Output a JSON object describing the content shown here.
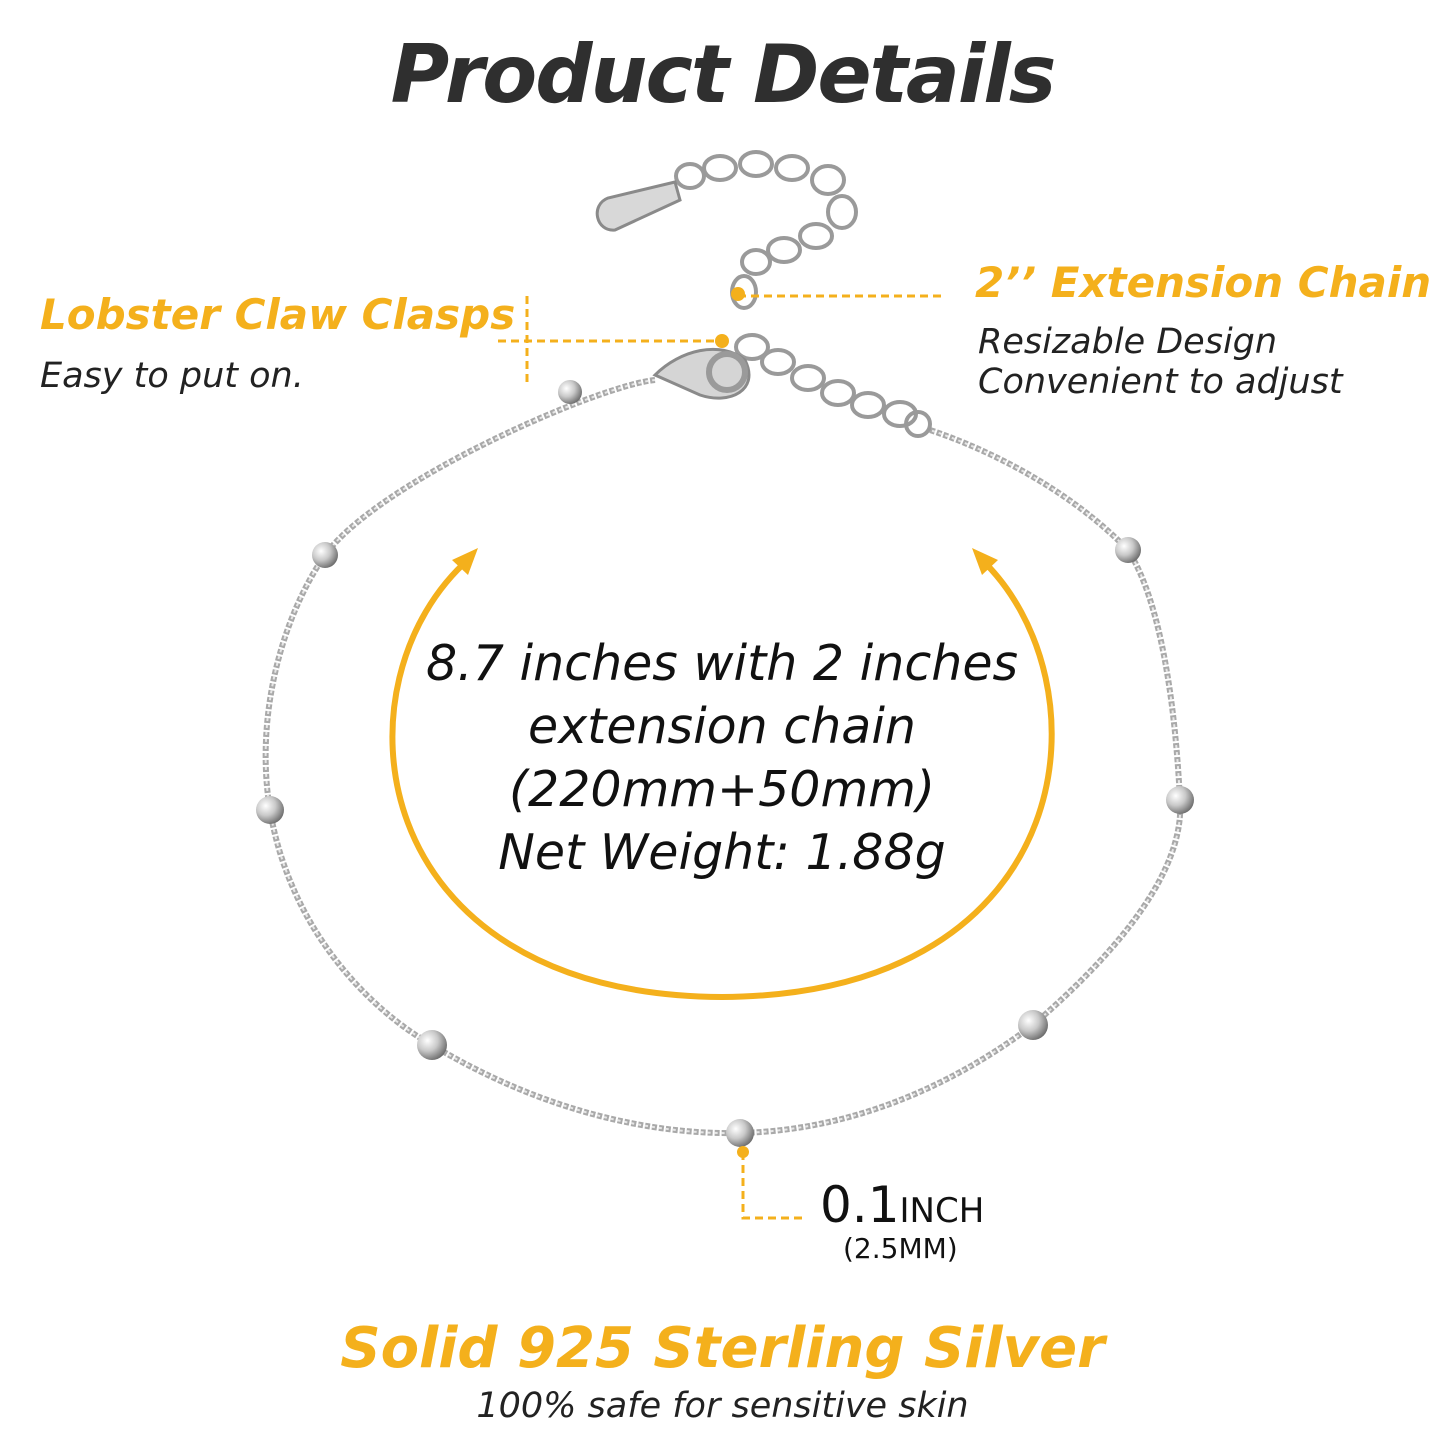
{
  "title": "Product Details",
  "features": {
    "clasp": {
      "title": "Lobster Claw Clasps",
      "desc": "Easy to put on."
    },
    "extension": {
      "title": "2’’ Extension Chain",
      "desc_lines": [
        "Resizable Design",
        "Convenient  to adjust"
      ]
    },
    "size_lines": [
      "8.7 inches with 2 inches",
      "extension chain",
      "(220mm+50mm)",
      "Net Weight: 1.88g"
    ],
    "bead": {
      "value": "0.1",
      "unit": "INCH",
      "metric": "(2.5MM)"
    },
    "material": {
      "title": "Solid 925 Sterling Silver",
      "desc": "100% safe for sensitive skin"
    }
  },
  "colors": {
    "accent": "#F4B01C",
    "title": "#2f2f2f",
    "silver": "#b8b8b8"
  }
}
